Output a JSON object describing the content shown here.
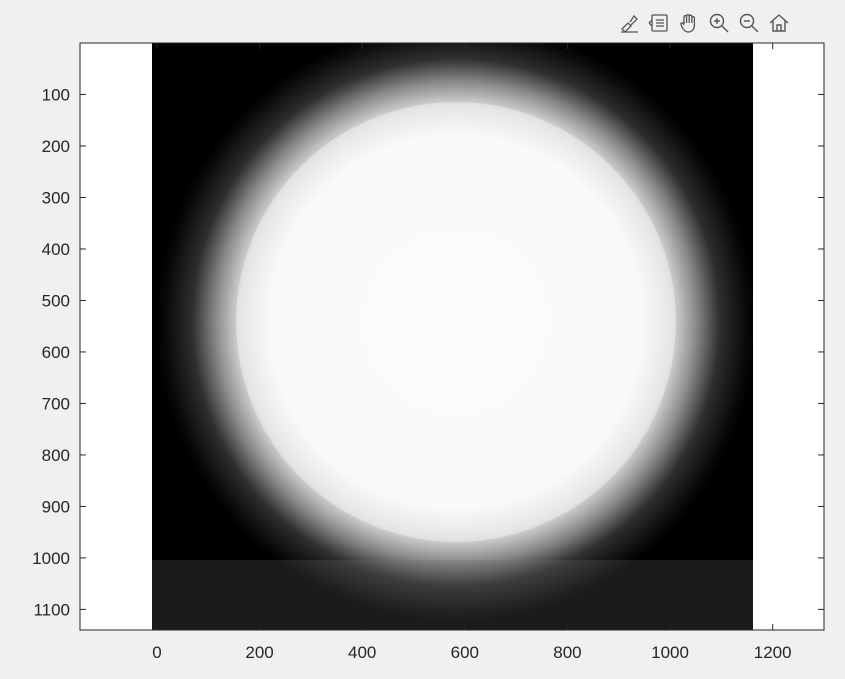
{
  "toolbar": {
    "icons": [
      "brush-icon",
      "data-tips-icon",
      "pan-hand-icon",
      "zoom-in-icon",
      "zoom-out-icon",
      "home-icon"
    ]
  },
  "colors": {
    "window_background": "#f0f0f0",
    "axes_background": "#ffffff",
    "axes_edge": "#262626",
    "tick_text": "#262626"
  },
  "chart_data": {
    "type": "heatmap",
    "colormap": "gray",
    "image_x_range": [
      0,
      1160
    ],
    "image_y_range": [
      0,
      1140
    ],
    "xlim": [
      -150,
      1300
    ],
    "ylim": [
      0,
      1140
    ],
    "y_direction": "reverse",
    "x_ticks": [
      0,
      200,
      400,
      600,
      800,
      1000,
      1200
    ],
    "y_ticks": [
      100,
      200,
      300,
      400,
      500,
      600,
      700,
      800,
      900,
      1000,
      1100
    ],
    "x_tick_labels": [
      "0",
      "200",
      "400",
      "600",
      "800",
      "1000",
      "1200"
    ],
    "y_tick_labels": [
      "100",
      "200",
      "300",
      "400",
      "500",
      "600",
      "700",
      "800",
      "900",
      "1000",
      "1100"
    ],
    "grid": false,
    "content": "bright white disk with soft blurred edges on a black background",
    "disk_center": [
      590,
      540
    ],
    "disk_radius": 470
  }
}
